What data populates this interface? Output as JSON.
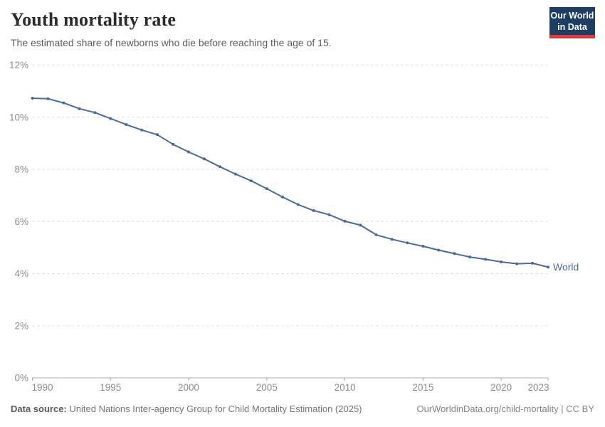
{
  "header": {
    "title": "Youth mortality rate",
    "subtitle": "The estimated share of newborns who die before reaching the age of 15.",
    "logo": {
      "line1": "Our World",
      "line2": "in Data",
      "bg_color": "#1d3d63",
      "accent_color": "#d93a3f"
    }
  },
  "chart_data": {
    "type": "line",
    "title": "Youth mortality rate",
    "xlabel": "",
    "ylabel": "",
    "xlim": [
      1990,
      2023
    ],
    "ylim": [
      0,
      12
    ],
    "grid": "horizontal-dashed",
    "legend_position": "end-of-line",
    "x_tick_values": [
      1990,
      1995,
      2000,
      2005,
      2010,
      2015,
      2020,
      2023
    ],
    "x_tick_labels": [
      "1990",
      "1995",
      "2000",
      "2005",
      "2010",
      "2015",
      "2020",
      "2023"
    ],
    "y_tick_values": [
      0,
      2,
      4,
      6,
      8,
      10,
      12
    ],
    "y_tick_labels": [
      "0%",
      "2%",
      "4%",
      "6%",
      "8%",
      "10%",
      "12%"
    ],
    "x": [
      1990,
      1991,
      1992,
      1993,
      1994,
      1995,
      1996,
      1997,
      1998,
      1999,
      2000,
      2001,
      2002,
      2003,
      2004,
      2005,
      2006,
      2007,
      2008,
      2009,
      2010,
      2011,
      2012,
      2013,
      2014,
      2015,
      2016,
      2017,
      2018,
      2019,
      2020,
      2021,
      2022,
      2023
    ],
    "series": [
      {
        "name": "World",
        "color": "#4c6a9c",
        "values": [
          10.73,
          10.71,
          10.55,
          10.33,
          10.18,
          9.95,
          9.72,
          9.51,
          9.33,
          8.96,
          8.67,
          8.4,
          8.1,
          7.82,
          7.56,
          7.26,
          6.94,
          6.65,
          6.42,
          6.26,
          6.01,
          5.86,
          5.49,
          5.32,
          5.18,
          5.05,
          4.9,
          4.77,
          4.64,
          4.55,
          4.45,
          4.38,
          4.4,
          4.25
        ]
      }
    ]
  },
  "footer": {
    "source_label": "Data source:",
    "source_text": "United Nations Inter-agency Group for Child Mortality Estimation (2025)",
    "link_text": "OurWorldinData.org/child-mortality",
    "separator": "|",
    "license_text": "CC BY"
  }
}
